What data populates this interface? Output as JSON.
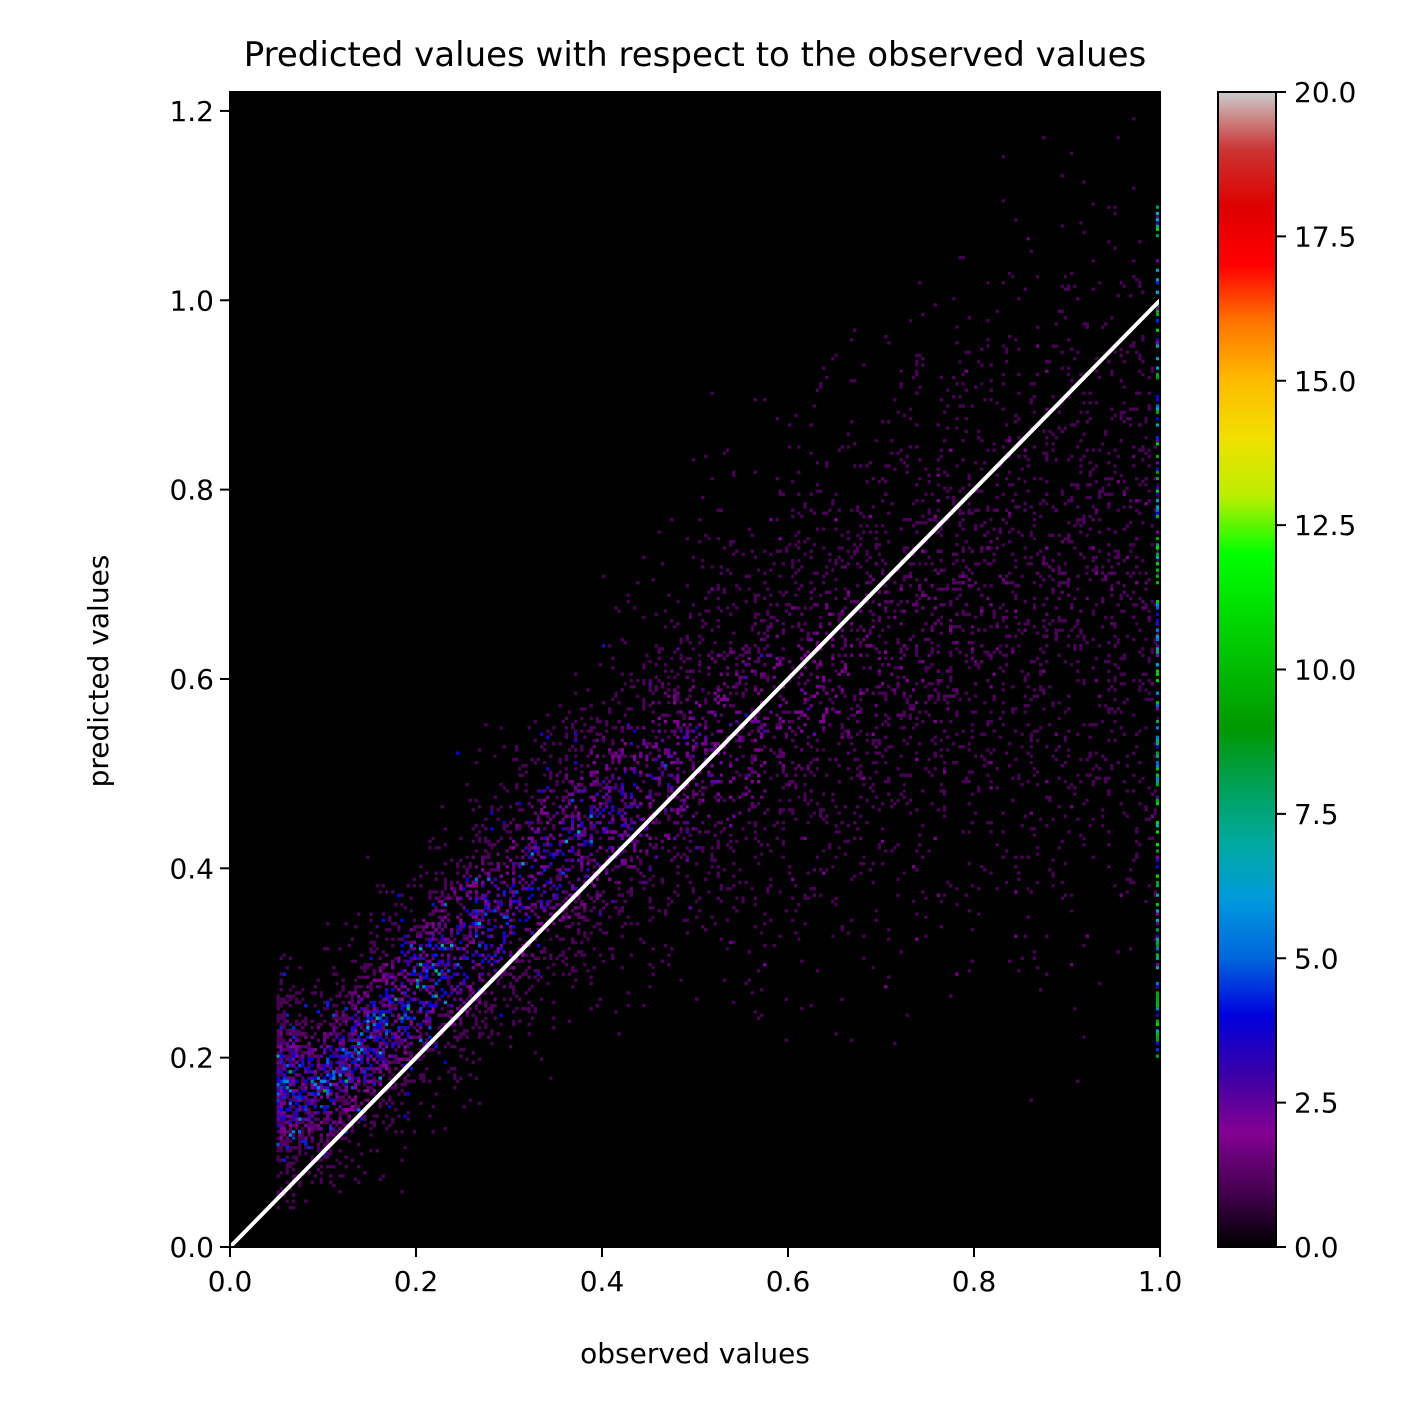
{
  "chart_data": {
    "type": "heatmap",
    "title": "Predicted values with respect to the observed values",
    "xlabel": "observed values",
    "ylabel": "predicted values",
    "xlim": [
      0.0,
      1.0
    ],
    "ylim": [
      0.0,
      1.22
    ],
    "x_ticks": [
      {
        "value": 0.0,
        "label": "0.0"
      },
      {
        "value": 0.2,
        "label": "0.2"
      },
      {
        "value": 0.4,
        "label": "0.4"
      },
      {
        "value": 0.6,
        "label": "0.6"
      },
      {
        "value": 0.8,
        "label": "0.8"
      },
      {
        "value": 1.0,
        "label": "1.0"
      }
    ],
    "y_ticks": [
      {
        "value": 0.0,
        "label": "0.0"
      },
      {
        "value": 0.2,
        "label": "0.2"
      },
      {
        "value": 0.4,
        "label": "0.4"
      },
      {
        "value": 0.6,
        "label": "0.6"
      },
      {
        "value": 0.8,
        "label": "0.8"
      },
      {
        "value": 1.0,
        "label": "1.0"
      },
      {
        "value": 1.2,
        "label": "1.2"
      }
    ],
    "reference_line": {
      "x": [
        0.0,
        1.0
      ],
      "y": [
        0.0,
        1.0
      ],
      "color": "#ffffff"
    },
    "background_color": "#000000",
    "colorbar": {
      "range": [
        0.0,
        20.0
      ],
      "ticks": [
        {
          "value": 0.0,
          "label": "0.0"
        },
        {
          "value": 2.5,
          "label": "2.5"
        },
        {
          "value": 5.0,
          "label": "5.0"
        },
        {
          "value": 7.5,
          "label": "7.5"
        },
        {
          "value": 10.0,
          "label": "10.0"
        },
        {
          "value": 12.5,
          "label": "12.5"
        },
        {
          "value": 15.0,
          "label": "15.0"
        },
        {
          "value": 17.5,
          "label": "17.5"
        },
        {
          "value": 20.0,
          "label": "20.0"
        }
      ],
      "colormap": "nipy_spectral",
      "stops": [
        {
          "t": 0.0,
          "color": "#000000"
        },
        {
          "t": 0.05,
          "color": "#470053"
        },
        {
          "t": 0.1,
          "color": "#830093"
        },
        {
          "t": 0.15,
          "color": "#3a00a8"
        },
        {
          "t": 0.2,
          "color": "#0000dd"
        },
        {
          "t": 0.25,
          "color": "#0066dd"
        },
        {
          "t": 0.3,
          "color": "#0099dd"
        },
        {
          "t": 0.35,
          "color": "#00aaa0"
        },
        {
          "t": 0.4,
          "color": "#00a055"
        },
        {
          "t": 0.45,
          "color": "#009900"
        },
        {
          "t": 0.5,
          "color": "#00bb00"
        },
        {
          "t": 0.55,
          "color": "#00dd00"
        },
        {
          "t": 0.6,
          "color": "#00ff00"
        },
        {
          "t": 0.65,
          "color": "#bbee00"
        },
        {
          "t": 0.7,
          "color": "#f0e000"
        },
        {
          "t": 0.75,
          "color": "#ffbb00"
        },
        {
          "t": 0.8,
          "color": "#ff7700"
        },
        {
          "t": 0.85,
          "color": "#ff0000"
        },
        {
          "t": 0.9,
          "color": "#dd0000"
        },
        {
          "t": 0.95,
          "color": "#cc3333"
        },
        {
          "t": 1.0,
          "color": "#cccccc"
        }
      ]
    },
    "density_model": {
      "description": "2D histogram of counts; dense band along predicted ≈ observed + 0.05 for observed 0.05–0.5, spreading wider at higher observed values; bright cluster at observed=1.0",
      "x_bins": 300,
      "y_bins": 366,
      "points": [
        {
          "x": 0.1,
          "y_center": 0.17,
          "y_spread": 0.05,
          "peak_count": 5.5
        },
        {
          "x": 0.2,
          "y_center": 0.27,
          "y_spread": 0.06,
          "peak_count": 5.0
        },
        {
          "x": 0.3,
          "y_center": 0.36,
          "y_spread": 0.07,
          "peak_count": 4.5
        },
        {
          "x": 0.4,
          "y_center": 0.45,
          "y_spread": 0.08,
          "peak_count": 3.5
        },
        {
          "x": 0.5,
          "y_center": 0.52,
          "y_spread": 0.1,
          "peak_count": 2.5
        },
        {
          "x": 0.6,
          "y_center": 0.58,
          "y_spread": 0.12,
          "peak_count": 2.0
        },
        {
          "x": 0.7,
          "y_center": 0.63,
          "y_spread": 0.14,
          "peak_count": 1.5
        },
        {
          "x": 0.8,
          "y_center": 0.67,
          "y_spread": 0.16,
          "peak_count": 1.2
        },
        {
          "x": 0.9,
          "y_center": 0.7,
          "y_spread": 0.18,
          "peak_count": 1.0
        }
      ]
    }
  }
}
